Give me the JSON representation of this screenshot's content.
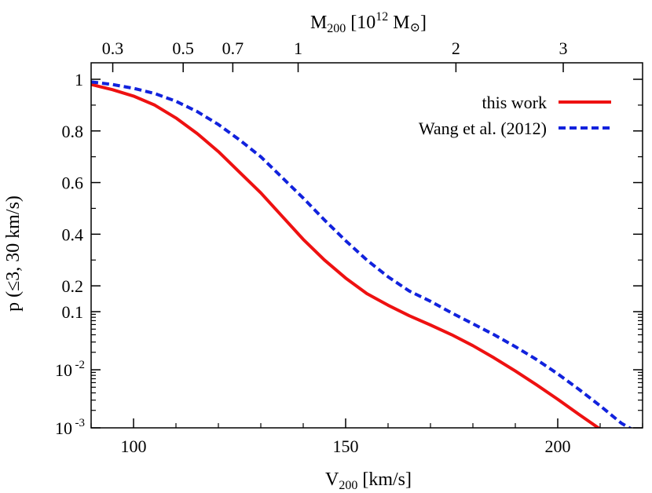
{
  "chart_data": {
    "type": "line",
    "xlabel": "V",
    "xlabel_sub": "200",
    "xlabel_unit": " [km/s]",
    "ylabel": "p (≤3, 30 km/s)",
    "top_axis": {
      "label_main": "M",
      "label_sub": "200",
      "label_open": " [10",
      "label_exp": "12",
      "label_unit": " M",
      "label_close": "]",
      "ticks": [
        {
          "label": "0.3",
          "x": 95.1
        },
        {
          "label": "0.5",
          "x": 111.7
        },
        {
          "label": "0.7",
          "x": 123.4
        },
        {
          "label": "1",
          "x": 138.8
        },
        {
          "label": "2",
          "x": 176.0
        },
        {
          "label": "3",
          "x": 201.3
        }
      ]
    },
    "xlim": [
      90,
      220
    ],
    "x_ticks": [
      {
        "label": "100",
        "value": 100
      },
      {
        "label": "150",
        "value": 150
      },
      {
        "label": "200",
        "value": 200
      }
    ],
    "y_upper": {
      "scale": "linear",
      "range": [
        0.1,
        1.0
      ],
      "ticks": [
        {
          "label": "1",
          "value": 1.0
        },
        {
          "label": "0.8",
          "value": 0.8
        },
        {
          "label": "0.6",
          "value": 0.6
        },
        {
          "label": "0.4",
          "value": 0.4
        },
        {
          "label": "0.2",
          "value": 0.2
        },
        {
          "label": "0.1",
          "value": 0.1
        }
      ]
    },
    "y_lower": {
      "scale": "log",
      "range": [
        0.001,
        0.1
      ],
      "ticks": [
        {
          "label_base": "10",
          "label_exp": "-2",
          "value": 0.01
        },
        {
          "label_base": "10",
          "label_exp": "-3",
          "value": 0.001
        }
      ]
    },
    "legend_position": "top-right",
    "series": [
      {
        "name": "this work",
        "color": "#ee1111",
        "style": "solid",
        "points": [
          [
            90,
            0.98
          ],
          [
            95,
            0.96
          ],
          [
            100,
            0.935
          ],
          [
            105,
            0.9
          ],
          [
            110,
            0.85
          ],
          [
            115,
            0.79
          ],
          [
            120,
            0.72
          ],
          [
            125,
            0.64
          ],
          [
            130,
            0.56
          ],
          [
            135,
            0.47
          ],
          [
            140,
            0.38
          ],
          [
            145,
            0.3
          ],
          [
            150,
            0.23
          ],
          [
            155,
            0.17
          ],
          [
            160,
            0.125
          ],
          [
            165,
            0.085
          ],
          [
            170,
            0.059
          ],
          [
            175,
            0.04
          ],
          [
            180,
            0.026
          ],
          [
            185,
            0.016
          ],
          [
            190,
            0.0095
          ],
          [
            195,
            0.0055
          ],
          [
            200,
            0.0031
          ],
          [
            205,
            0.0017
          ],
          [
            210,
            0.00095
          ]
        ]
      },
      {
        "name": "Wang et al. (2012)",
        "color": "#1122dd",
        "style": "dashed",
        "points": [
          [
            90,
            0.99
          ],
          [
            95,
            0.98
          ],
          [
            100,
            0.965
          ],
          [
            105,
            0.945
          ],
          [
            110,
            0.915
          ],
          [
            115,
            0.875
          ],
          [
            120,
            0.825
          ],
          [
            125,
            0.765
          ],
          [
            130,
            0.7
          ],
          [
            135,
            0.62
          ],
          [
            140,
            0.54
          ],
          [
            145,
            0.455
          ],
          [
            150,
            0.375
          ],
          [
            155,
            0.3
          ],
          [
            160,
            0.235
          ],
          [
            165,
            0.18
          ],
          [
            170,
            0.14
          ],
          [
            175,
            0.095
          ],
          [
            180,
            0.062
          ],
          [
            185,
            0.04
          ],
          [
            190,
            0.025
          ],
          [
            195,
            0.015
          ],
          [
            200,
            0.0085
          ],
          [
            205,
            0.0046
          ],
          [
            210,
            0.0024
          ],
          [
            215,
            0.0012
          ],
          [
            218,
            0.0009
          ]
        ]
      }
    ]
  }
}
